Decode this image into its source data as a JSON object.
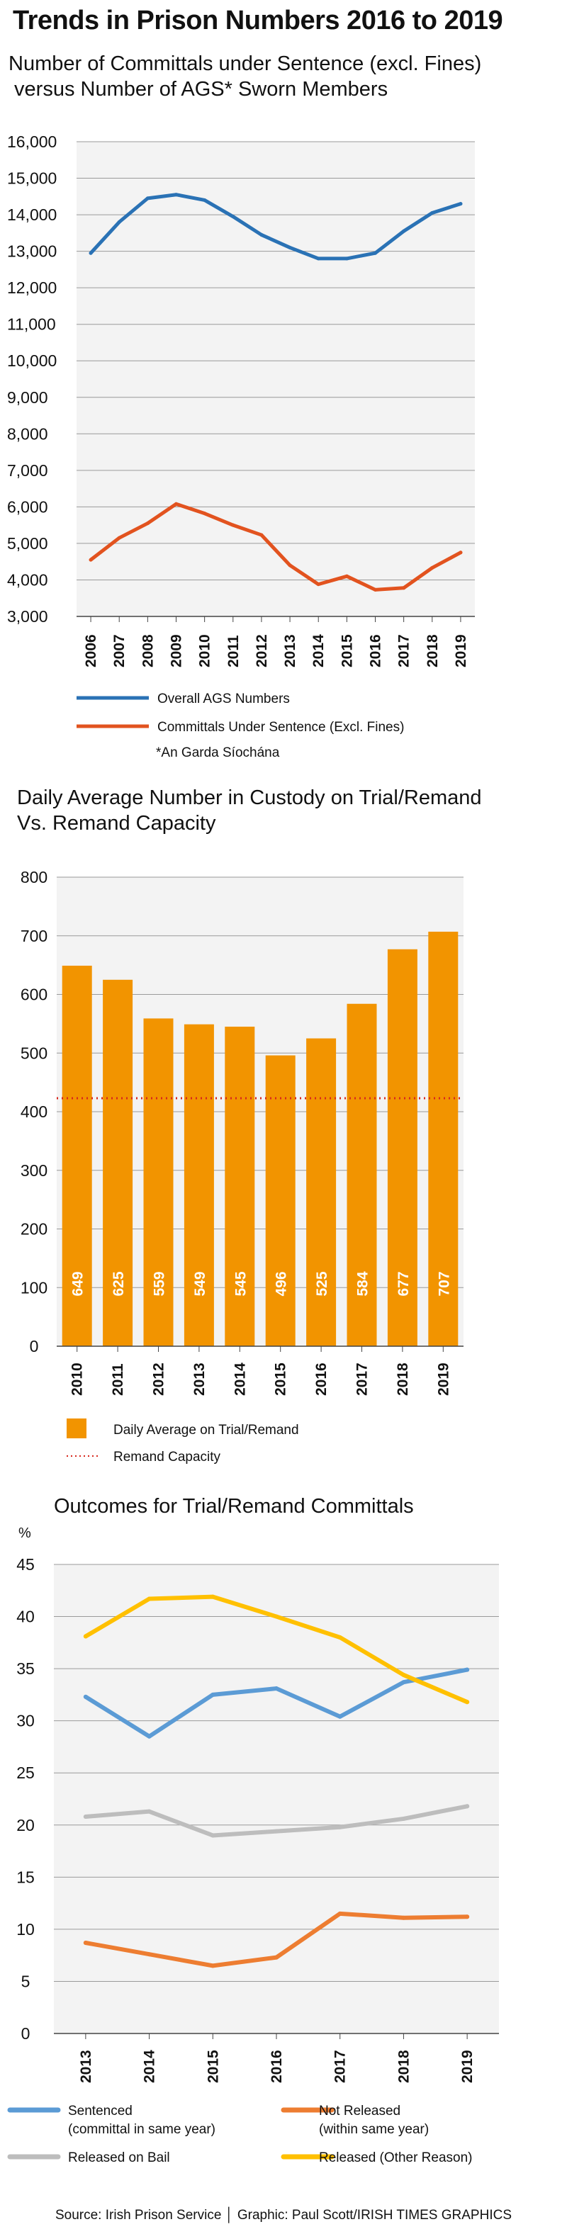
{
  "title": "Trends in Prison Numbers 2016 to 2019",
  "footer": "Source: Irish Prison Service │ Graphic: Paul Scott/IRISH TIMES GRAPHICS",
  "colors": {
    "ags": "#2a72b5",
    "committals": "#e2531f",
    "bar": "#f29400",
    "bar_value_text": "#ffffff",
    "capacity": "#d8271c",
    "sentenced": "#5b9bd5",
    "not_released": "#ed7d31",
    "released_bail": "#bdbdbd",
    "released_other": "#ffc000",
    "plot_bg": "#f3f3f3",
    "grid": "#9a9a9a"
  },
  "chart_data": [
    {
      "type": "line",
      "title": "Number of Committals under Sentence (excl. Fines)\n versus Number of AGS* Sworn Members",
      "x": [
        "2006",
        "2007",
        "2008",
        "2009",
        "2010",
        "2011",
        "2012",
        "2013",
        "2014",
        "2015",
        "2016",
        "2017",
        "2018",
        "2019"
      ],
      "ylim": [
        3000,
        16000
      ],
      "yticks": [
        "3,000",
        "4,000",
        "5,000",
        "6,000",
        "7,000",
        "8,000",
        "9,000",
        "10,000",
        "11,000",
        "12,000",
        "13,000",
        "14,000",
        "15,000",
        "16,000"
      ],
      "grid": true,
      "legend_position": "bottom",
      "series": [
        {
          "name": "Overall AGS Numbers",
          "color_key": "ags",
          "values": [
            12950,
            13800,
            14450,
            14550,
            14400,
            13950,
            13450,
            13100,
            12800,
            12800,
            12950,
            13550,
            14050,
            14300
          ]
        },
        {
          "name": "Committals Under Sentence (Excl. Fines)",
          "color_key": "committals",
          "values": [
            4550,
            5150,
            5550,
            6080,
            5820,
            5500,
            5230,
            4400,
            3880,
            4100,
            3730,
            3780,
            4330,
            4750
          ]
        }
      ],
      "note": "*An Garda Síochána"
    },
    {
      "type": "bar",
      "title": "Daily Average Number in Custody on Trial/Remand\nVs. Remand Capacity",
      "categories": [
        "2010",
        "2011",
        "2012",
        "2013",
        "2014",
        "2015",
        "2016",
        "2017",
        "2018",
        "2019"
      ],
      "values": [
        649,
        625,
        559,
        549,
        545,
        496,
        525,
        584,
        677,
        707
      ],
      "value_labels": [
        "649",
        "625",
        "559",
        "549",
        "545",
        "496",
        "525",
        "584",
        "677",
        "707"
      ],
      "ylim": [
        0,
        800
      ],
      "yticks": [
        "0",
        "100",
        "200",
        "300",
        "400",
        "500",
        "600",
        "700",
        "800"
      ],
      "grid": true,
      "reference_line": {
        "name": "Remand Capacity",
        "value": 423
      },
      "series_name": "Daily Average on Trial/Remand",
      "legend_position": "bottom"
    },
    {
      "type": "line",
      "title": "Outcomes for Trial/Remand Committals",
      "y_unit": "%",
      "x": [
        "2013",
        "2014",
        "2015",
        "2016",
        "2017",
        "2018",
        "2019"
      ],
      "ylim": [
        0,
        45
      ],
      "yticks": [
        "0",
        "5",
        "10",
        "15",
        "20",
        "25",
        "30",
        "35",
        "40",
        "45"
      ],
      "grid": true,
      "legend_position": "bottom",
      "series": [
        {
          "name": "Sentenced",
          "name_line2": "(committal in same year)",
          "color_key": "sentenced",
          "values": [
            32.3,
            28.5,
            32.5,
            33.1,
            30.4,
            33.7,
            34.9
          ]
        },
        {
          "name": "Not Released",
          "name_line2": "(within same year)",
          "color_key": "not_released",
          "values": [
            8.7,
            7.6,
            6.5,
            7.3,
            11.5,
            11.1,
            11.2
          ]
        },
        {
          "name": "Released on Bail",
          "name_line2": "",
          "color_key": "released_bail",
          "values": [
            20.8,
            21.3,
            19.0,
            19.4,
            19.8,
            20.6,
            21.8
          ]
        },
        {
          "name": "Released (Other Reason)",
          "name_line2": "",
          "color_key": "released_other",
          "values": [
            38.1,
            41.7,
            41.9,
            40.0,
            38.0,
            34.4,
            31.8
          ]
        }
      ]
    }
  ]
}
